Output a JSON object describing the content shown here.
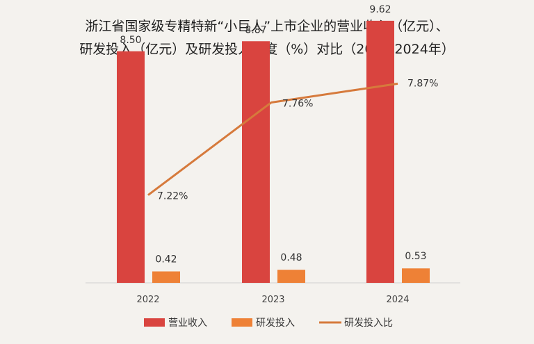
{
  "chart_data": {
    "type": "bar",
    "title_line1": "浙江省国家级专精特新“小巨人”上市企业的营业收入（亿元）、",
    "title_line2": "研发投入（亿元）及研发投入强度（%）对比（2022-2024年）",
    "categories": [
      "2022",
      "2023",
      "2024"
    ],
    "series": [
      {
        "name": "营业收入",
        "kind": "bar",
        "color": "#d9443f",
        "values": [
          8.5,
          8.87,
          9.62
        ],
        "labels": [
          "8.50",
          "8.87",
          "9.62"
        ]
      },
      {
        "name": "研发投入",
        "kind": "bar",
        "color": "#ee8136",
        "values": [
          0.42,
          0.48,
          0.53
        ],
        "labels": [
          "0.42",
          "0.48",
          "0.53"
        ]
      },
      {
        "name": "研发投入比",
        "kind": "line",
        "color": "#d67a3c",
        "values": [
          7.22,
          7.76,
          7.87
        ],
        "labels": [
          "7.22%",
          "7.76%",
          "7.87%"
        ]
      }
    ],
    "ylim": [
      0,
      10
    ],
    "y2lim": [
      7.0,
      7.9
    ],
    "legend_position": "bottom",
    "grid": false
  }
}
